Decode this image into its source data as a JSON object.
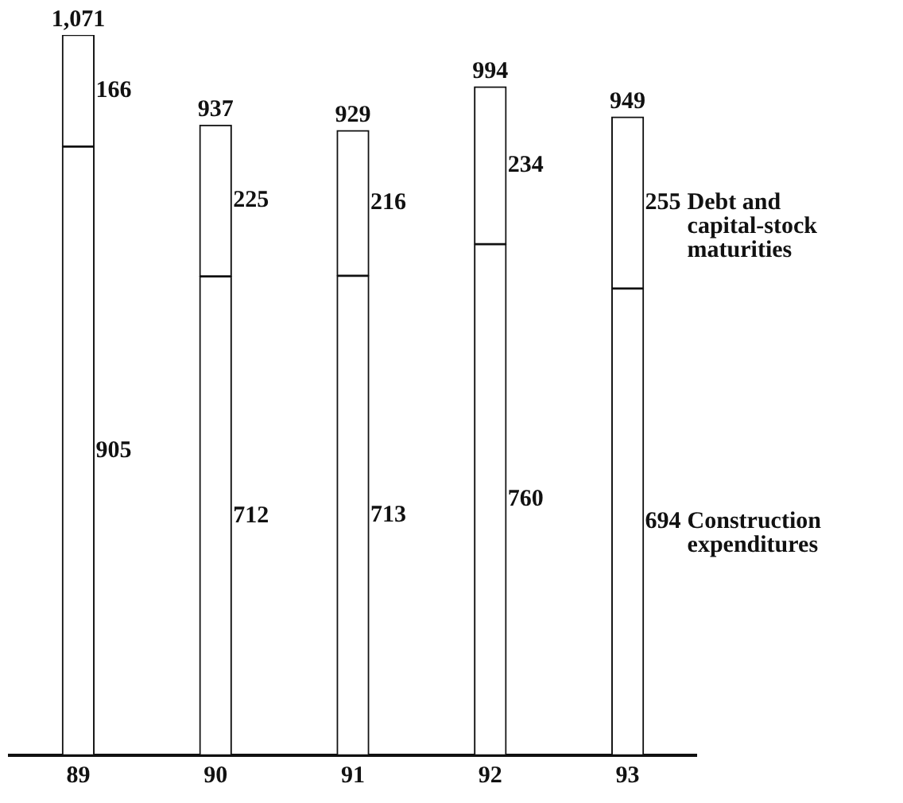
{
  "chart_data": {
    "type": "bar",
    "stacked": true,
    "categories": [
      "89",
      "90",
      "91",
      "92",
      "93"
    ],
    "series": [
      {
        "name": "Construction expenditures",
        "color": "#ffffff",
        "values": [
          905,
          712,
          713,
          760,
          694
        ]
      },
      {
        "name": "Debt and capital-stock maturities",
        "color": "#ffffff",
        "values": [
          166,
          225,
          216,
          234,
          255
        ]
      }
    ],
    "totals": [
      "1,071",
      "937",
      "929",
      "994",
      "949"
    ],
    "data_labels": true,
    "grid": false,
    "legend": false,
    "tick_labels": "x"
  }
}
